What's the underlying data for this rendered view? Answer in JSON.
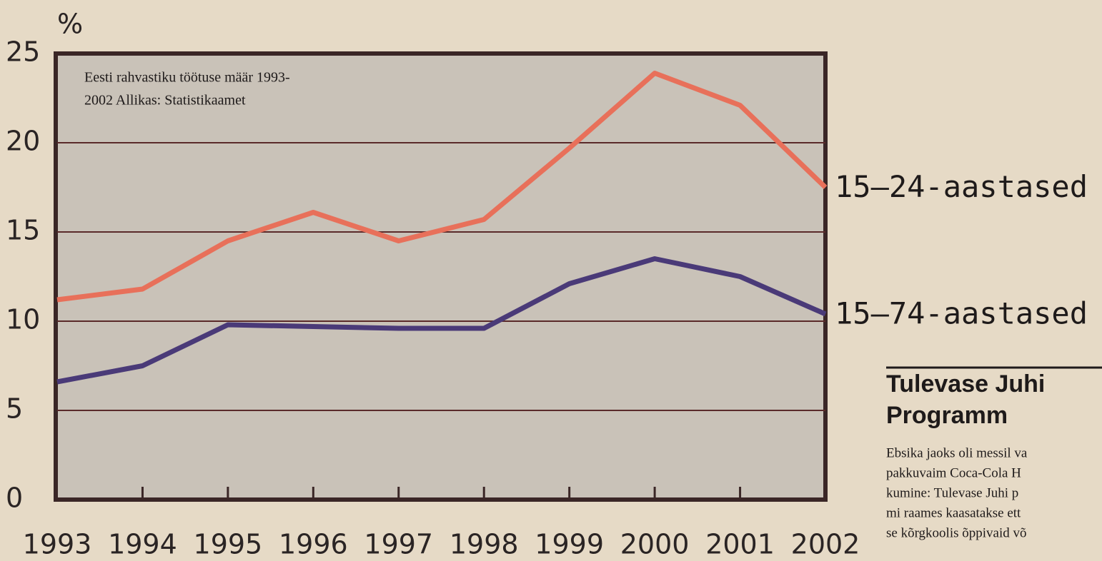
{
  "chart_data": {
    "type": "line",
    "y_label": "%",
    "annotation": [
      "Eesti rahvastiku töötuse määr 1993-",
      "2002 Allikas: Statistikaamet"
    ],
    "x": [
      1993,
      1994,
      1995,
      1996,
      1997,
      1998,
      1999,
      2000,
      2001,
      2002
    ],
    "xlim": [
      1993,
      2002
    ],
    "series": [
      {
        "name": "15–24-aastased",
        "color": "#e8705a",
        "values": [
          11.2,
          11.8,
          14.5,
          16.1,
          14.5,
          15.7,
          19.7,
          23.9,
          22.1,
          17.5
        ]
      },
      {
        "name": "15–74-aastased",
        "color": "#4a3a78",
        "values": [
          6.6,
          7.5,
          9.8,
          9.7,
          9.6,
          9.6,
          12.1,
          13.5,
          12.5,
          10.4
        ]
      }
    ],
    "ylim": [
      0,
      25
    ],
    "yticks": [
      0,
      5,
      10,
      15,
      20,
      25
    ],
    "grid": true
  },
  "sidebar": {
    "heading": [
      "Tulevase Juhi",
      "Programm"
    ],
    "lines": [
      "Ebsika jaoks oli messil va",
      "pakkuvaim Coca-Cola H",
      "kumine: Tulevase Juhi p",
      "mi raames kaasatakse ett",
      "se kõrgkoolis õppivaid võ"
    ]
  }
}
